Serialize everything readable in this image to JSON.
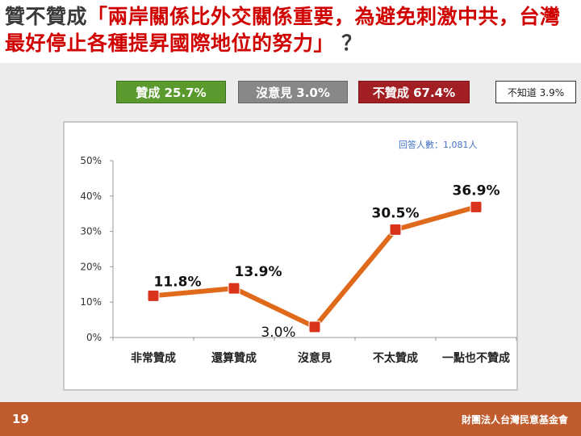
{
  "title": {
    "prefix": "贊不贊成",
    "quote": "「兩岸關係比外交關係重要，為避免刺激中共，台灣最好停止各種提昇國際地位的努力」",
    "suffix": "？"
  },
  "summary": {
    "agree": "贊成 25.7%",
    "neutral": "沒意見 3.0%",
    "disagree": "不贊成 67.4%",
    "unknown": "不知道 3.9%"
  },
  "colors": {
    "agree": "#5a9a2e",
    "neutral": "#888888",
    "disagree": "#a21f24",
    "line": "#e06a1c",
    "title_quote": "#d10000",
    "footer": "#bf5b2c",
    "note": "#4472c4"
  },
  "sample_note": "回答人數：1,081人",
  "footer": {
    "page_number": "19",
    "org": "財團法人台灣民意基金會"
  },
  "chart_data": {
    "type": "line",
    "categories": [
      "非常贊成",
      "還算贊成",
      "沒意見",
      "不太贊成",
      "一點也不贊成"
    ],
    "values": [
      11.8,
      13.9,
      3.0,
      30.5,
      36.9
    ],
    "data_labels": [
      "11.8%",
      "13.9%",
      "3.0%",
      "30.5%",
      "36.9%"
    ],
    "y_ticks": [
      0,
      10,
      20,
      30,
      40,
      50
    ],
    "y_tick_labels": [
      "0%",
      "10%",
      "20%",
      "30%",
      "40%",
      "50%"
    ],
    "ylim": [
      0,
      50
    ],
    "grid": false,
    "title": "",
    "xlabel": "",
    "ylabel": ""
  }
}
